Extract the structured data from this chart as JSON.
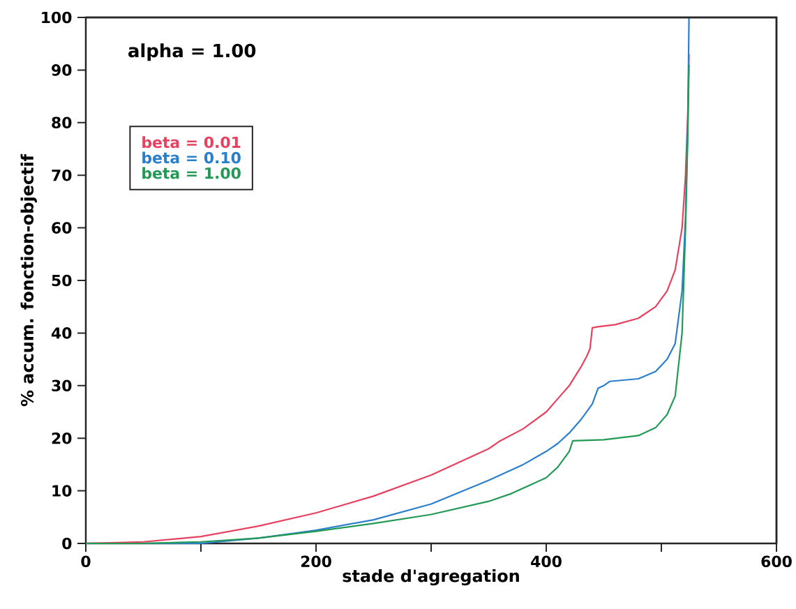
{
  "chart_data": {
    "type": "line",
    "xlabel": "stade d'agregation",
    "ylabel": "% accum. fonction-objectif",
    "annotations": [
      "alpha = 1.00"
    ],
    "xlim": [
      0,
      600
    ],
    "xticks": [
      0,
      {
        "value": 100,
        "label": null
      },
      200,
      {
        "value": 300,
        "label": null
      },
      400,
      {
        "value": 500,
        "label": null
      },
      600
    ],
    "ylim": [
      0,
      100
    ],
    "yticks": [
      0,
      10,
      20,
      30,
      40,
      50,
      60,
      70,
      80,
      90,
      100
    ],
    "legend": "top left",
    "grid": false,
    "marker": "none",
    "line_style": "solid",
    "series": [
      {
        "name": "beta = 0.01",
        "color": "#e8405f",
        "x": [
          0,
          50,
          100,
          150,
          200,
          250,
          300,
          350,
          360,
          380,
          400,
          410,
          420,
          430,
          435,
          438,
          440,
          445,
          460,
          480,
          495,
          505,
          512,
          518,
          521,
          523,
          524
        ],
        "values": [
          0,
          0.3,
          1.3,
          3.3,
          5.8,
          9,
          13,
          18,
          19.5,
          21.8,
          25,
          27.5,
          30,
          33.5,
          35.5,
          37,
          41,
          41.2,
          41.6,
          42.8,
          45,
          48,
          52,
          60,
          70,
          82,
          93
        ]
      },
      {
        "name": "beta = 0.10",
        "color": "#2a7fcc",
        "x": [
          0,
          100,
          150,
          200,
          250,
          300,
          350,
          380,
          400,
          410,
          420,
          430,
          440,
          445,
          450,
          455,
          480,
          495,
          505,
          512,
          518,
          521,
          523,
          524
        ],
        "values": [
          0,
          0,
          1,
          2.5,
          4.5,
          7.5,
          12,
          15,
          17.5,
          19,
          21,
          23.5,
          26.5,
          29.5,
          30,
          30.8,
          31.3,
          32.7,
          35,
          38,
          48,
          62,
          80,
          100
        ]
      },
      {
        "name": "beta = 1.00",
        "color": "#229954",
        "x": [
          0,
          50,
          100,
          150,
          200,
          250,
          300,
          350,
          370,
          380,
          400,
          410,
          415,
          420,
          423,
          450,
          480,
          495,
          505,
          512,
          518,
          521,
          523,
          524
        ],
        "values": [
          0,
          0,
          0.3,
          1,
          2.3,
          3.8,
          5.5,
          8,
          9.5,
          10.5,
          12.5,
          14.5,
          16,
          17.5,
          19.5,
          19.7,
          20.5,
          22,
          24.5,
          28,
          40,
          60,
          78,
          91
        ]
      }
    ]
  }
}
